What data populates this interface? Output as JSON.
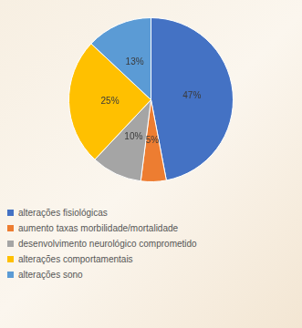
{
  "chart_data": {
    "type": "pie",
    "categories": [
      "alterações fisiológicas",
      "aumento taxas morbilidade/mortalidade",
      "desenvolvimento neurológico comprometido",
      "alterações comportamentais",
      "alterações sono"
    ],
    "values": [
      47,
      5,
      10,
      25,
      13
    ],
    "value_labels": [
      "47%",
      "5%",
      "10%",
      "25%",
      "13%"
    ],
    "colors": [
      "#4472c4",
      "#ed7d31",
      "#a5a5a5",
      "#ffc000",
      "#5b9bd5"
    ],
    "data_labels": true,
    "legend": "bottom"
  }
}
